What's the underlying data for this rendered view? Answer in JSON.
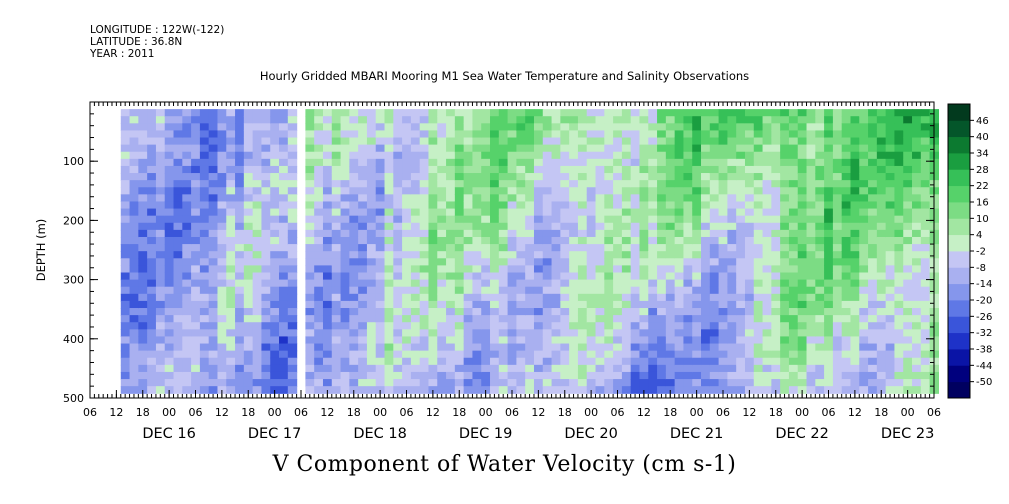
{
  "header": {
    "longitude": "LONGITUDE : 122W(-122)",
    "latitude": "LATITUDE : 36.8N",
    "year": "YEAR : 2011"
  },
  "title": "Hourly Gridded MBARI Mooring M1 Sea Water Temperature and Salinity Observations",
  "caption": "V Component of Water Velocity (cm s-1)",
  "chart_data": {
    "type": "heatmap",
    "title": "Hourly Gridded MBARI Mooring M1 Sea Water Temperature and Salinity Observations",
    "xlabel": "",
    "ylabel": "DEPTH (m)",
    "zlabel": "V Component of Water Velocity (cm s-1)",
    "x_axis": {
      "start": "Dec 15 2011 06:00",
      "end": "Dec 23 2011 06:00",
      "hour_tick_labels": [
        "06",
        "12",
        "18",
        "00",
        "06",
        "12",
        "18",
        "00",
        "06",
        "12",
        "18",
        "00",
        "06",
        "12",
        "18",
        "00",
        "06",
        "12",
        "18",
        "00",
        "06",
        "12",
        "18",
        "00",
        "06",
        "12",
        "18",
        "00",
        "06",
        "12",
        "18",
        "00",
        "06"
      ],
      "day_labels": [
        "DEC 16",
        "DEC 17",
        "DEC 18",
        "DEC 19",
        "DEC 20",
        "DEC 21",
        "DEC 22",
        "DEC 23"
      ]
    },
    "y_axis": {
      "range": [
        500,
        0
      ],
      "ticks": [
        100,
        200,
        300,
        400,
        500
      ],
      "inverted": true
    },
    "colorbar": {
      "levels": [
        -50,
        -44,
        -38,
        -32,
        -26,
        -20,
        -14,
        -8,
        -2,
        4,
        10,
        16,
        22,
        28,
        34,
        40,
        46
      ],
      "label_values": [
        "46",
        "40",
        "34",
        "28",
        "22",
        "16",
        "10",
        "4",
        "-2",
        "-8",
        "-14",
        "-20",
        "-26",
        "-32",
        "-38",
        "-44",
        "-50"
      ],
      "colors": [
        "#000060",
        "#00007e",
        "#0a14a6",
        "#1e32c8",
        "#3a55da",
        "#5f78e6",
        "#8596ec",
        "#a9b0f0",
        "#c4c6f4",
        "#c6f0c6",
        "#a2e6a2",
        "#7cdc84",
        "#56d26a",
        "#36c058",
        "#1a9e40",
        "#0c7a30",
        "#04562a",
        "#023a1e"
      ]
    },
    "grid": false,
    "legend": "colorbar right",
    "approx_profile": {
      "description_dates": [
        "DEC 16",
        "DEC 17",
        "DEC 18",
        "DEC 19",
        "DEC 20",
        "DEC 21",
        "DEC 22"
      ],
      "surface_v_cm_s": [
        -14,
        -8,
        4,
        10,
        8,
        16,
        22
      ],
      "deep_v_cm_s": [
        -14,
        -14,
        -10,
        -8,
        -14,
        -20,
        -2
      ]
    }
  }
}
